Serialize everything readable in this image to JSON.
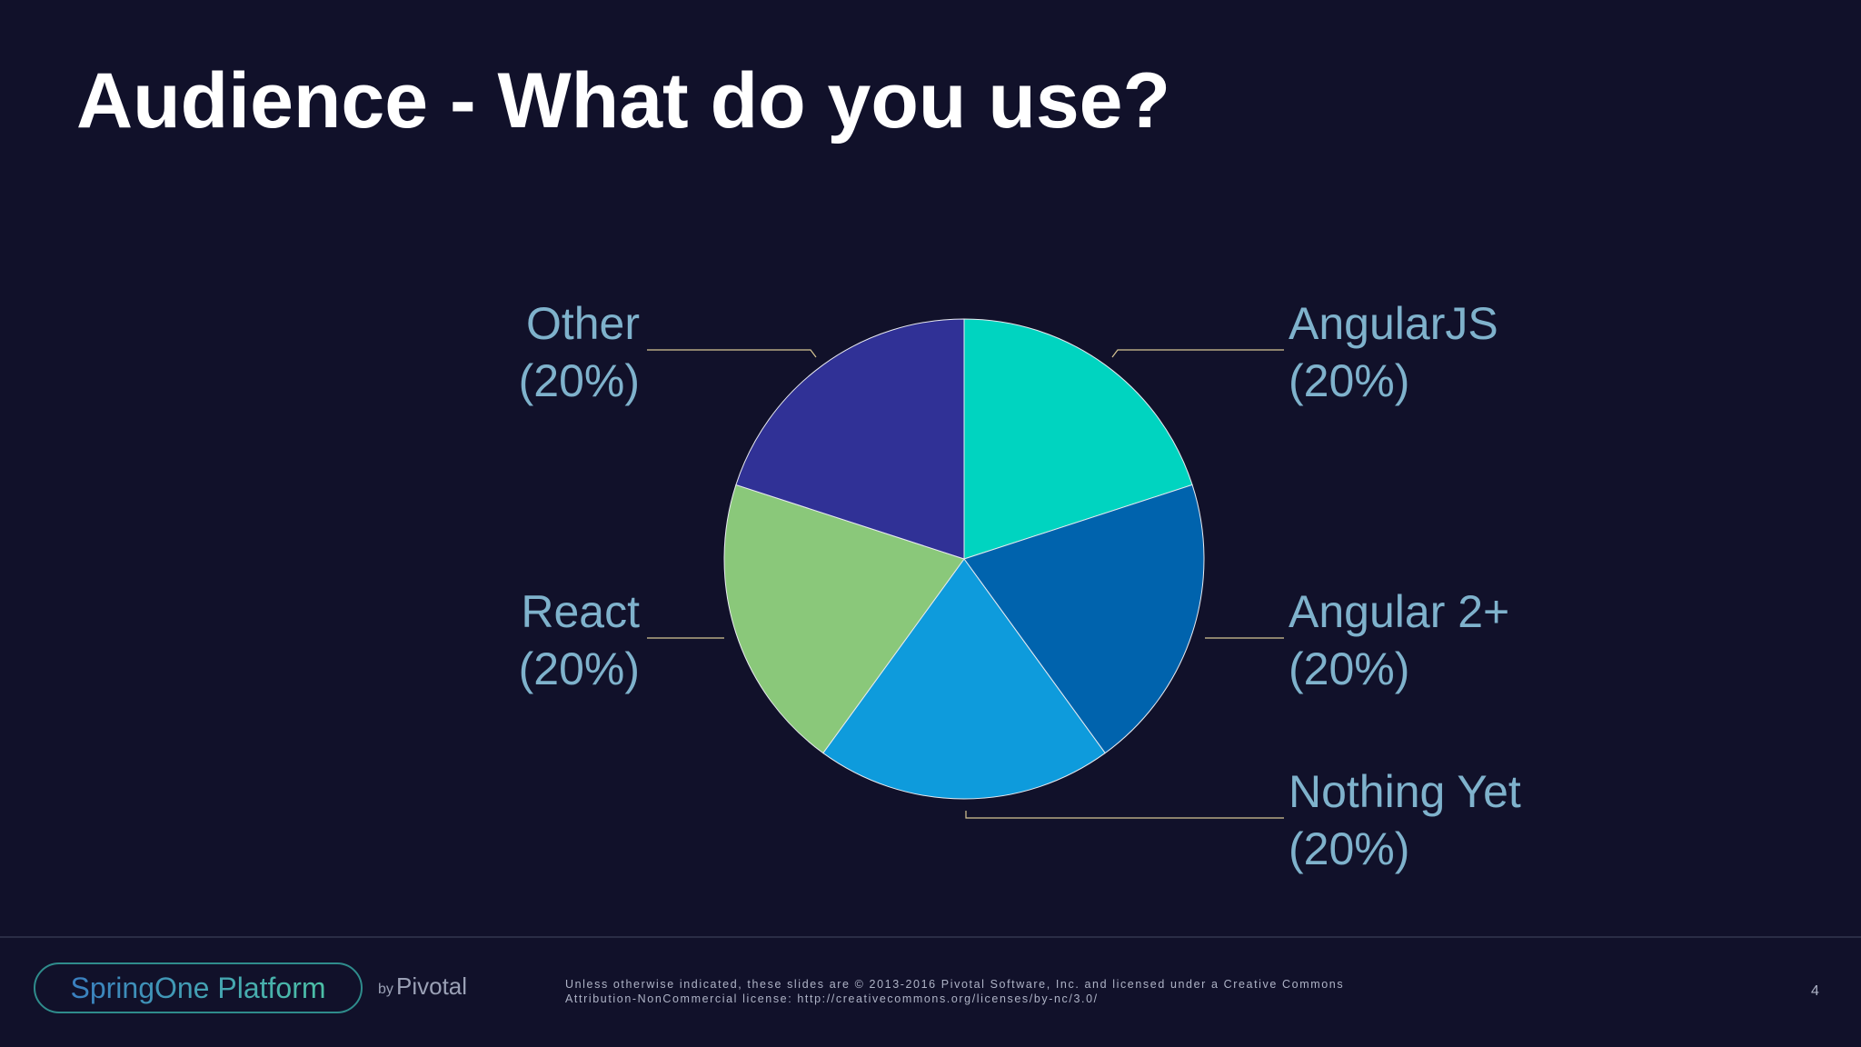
{
  "slide": {
    "title": "Audience - What do you use?",
    "page_number": "4"
  },
  "chart_data": {
    "type": "pie",
    "title": "",
    "unit": "%",
    "slices": [
      {
        "label": "AngularJS",
        "display": "(20%)",
        "value": 20,
        "color": "#00d4c0"
      },
      {
        "label": "Angular 2+",
        "display": "(20%)",
        "value": 20,
        "color": "#0063ad"
      },
      {
        "label": "Nothing Yet",
        "display": "(20%)",
        "value": 20,
        "color": "#0e9bdc"
      },
      {
        "label": "React",
        "display": "(20%)",
        "value": 20,
        "color": "#8ac87a"
      },
      {
        "label": "Other",
        "display": "(20%)",
        "value": 20,
        "color": "#303196"
      }
    ],
    "start": "12 o'clock",
    "direction": "clockwise",
    "label_color": "#7fb2cc",
    "leader_line_color": "#d6c593"
  },
  "footer": {
    "brand_name": "SpringOne Platform",
    "brand_by": "by",
    "brand_company": "Pivotal",
    "brand_colors": [
      "#3a7fc0",
      "#4cc0a6"
    ],
    "license_line_1": "Unless otherwise indicated, these slides are © 2013-2016 Pivotal Software, Inc. and licensed under a Creative Commons",
    "license_line_2": "Attribution-NonCommercial license: http://creativecommons.org/licenses/by-nc/3.0/"
  }
}
